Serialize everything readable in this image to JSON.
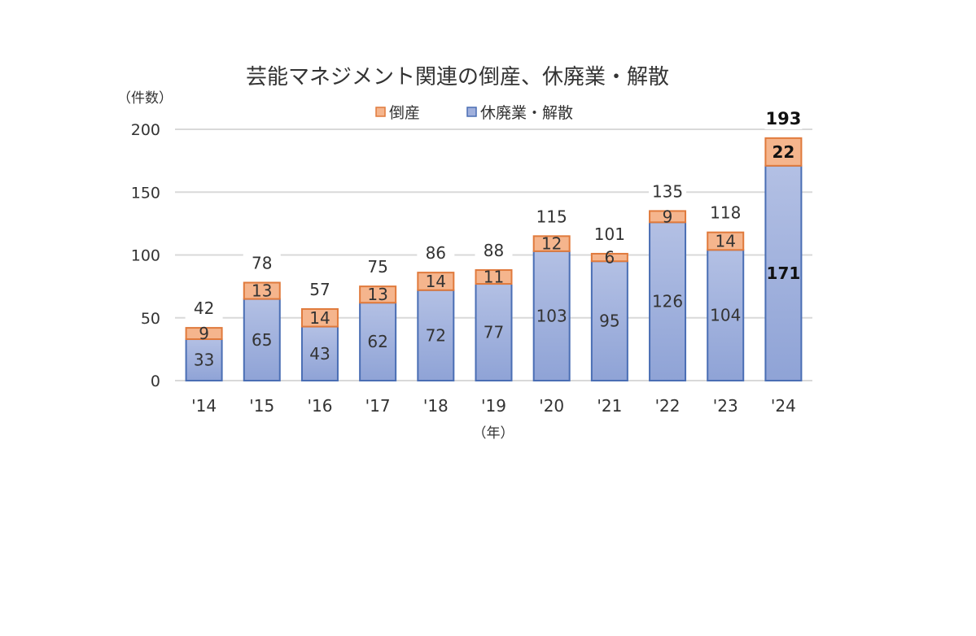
{
  "chart_data": {
    "type": "bar",
    "stacked": true,
    "title": "芸能マネジメント関連の倒産、休廃業・解散",
    "ylabel": "（件数）",
    "xlabel": "（年）",
    "ylim": [
      0,
      200
    ],
    "yticks": [
      "0",
      "50",
      "100",
      "150",
      "200"
    ],
    "categories": [
      "'14",
      "'15",
      "'16",
      "'17",
      "'18",
      "'19",
      "'20",
      "'21",
      "'22",
      "'23",
      "'24"
    ],
    "series": [
      {
        "name": "休廃業・解散",
        "values": [
          33,
          65,
          43,
          62,
          72,
          77,
          103,
          95,
          126,
          104,
          171
        ],
        "fill": "#a0b0dc",
        "stroke": "#4a6eb4"
      },
      {
        "name": "倒産",
        "values": [
          9,
          13,
          14,
          13,
          14,
          11,
          12,
          6,
          9,
          14,
          22
        ],
        "fill": "#f5b58d",
        "stroke": "#e07a3c"
      }
    ],
    "totals": [
      "42",
      "78",
      "57",
      "75",
      "86",
      "88",
      "115",
      "101",
      "135",
      "118",
      "193"
    ],
    "legend_order": [
      "倒産",
      "休廃業・解散"
    ],
    "legend_position": "top",
    "grid": true,
    "highlight_last": true
  }
}
